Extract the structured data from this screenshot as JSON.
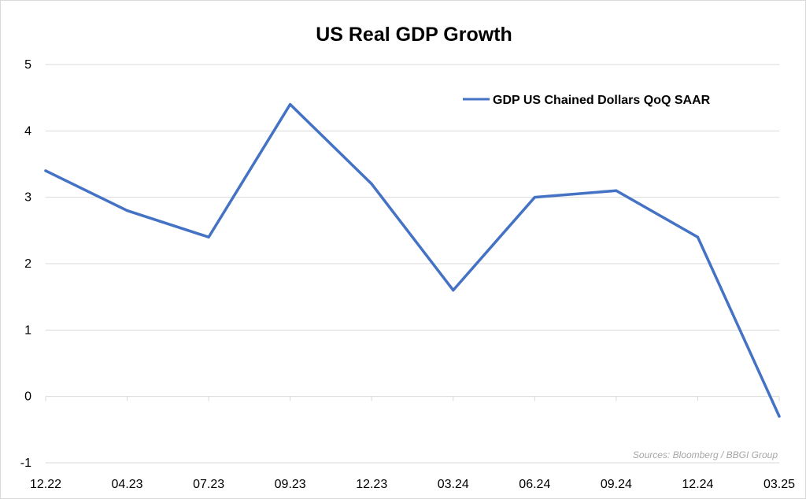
{
  "chart_data": {
    "type": "line",
    "title": "US Real GDP Growth",
    "categories": [
      "12.22",
      "04.23",
      "07.23",
      "09.23",
      "12.23",
      "03.24",
      "06.24",
      "09.24",
      "12.24",
      "03.25"
    ],
    "series": [
      {
        "name": "GDP US Chained Dollars QoQ SAAR",
        "values": [
          3.4,
          2.8,
          2.4,
          4.4,
          3.2,
          1.6,
          3.0,
          3.1,
          2.4,
          -0.3
        ],
        "color": "#4472c4"
      }
    ],
    "y_ticks": [
      "5",
      "4",
      "3",
      "2",
      "1",
      "0",
      "-1"
    ],
    "ylim": [
      -1,
      5
    ],
    "grid": true,
    "legend_position": "top-right",
    "source": "Sources: Bloomberg / BBGI Group"
  }
}
